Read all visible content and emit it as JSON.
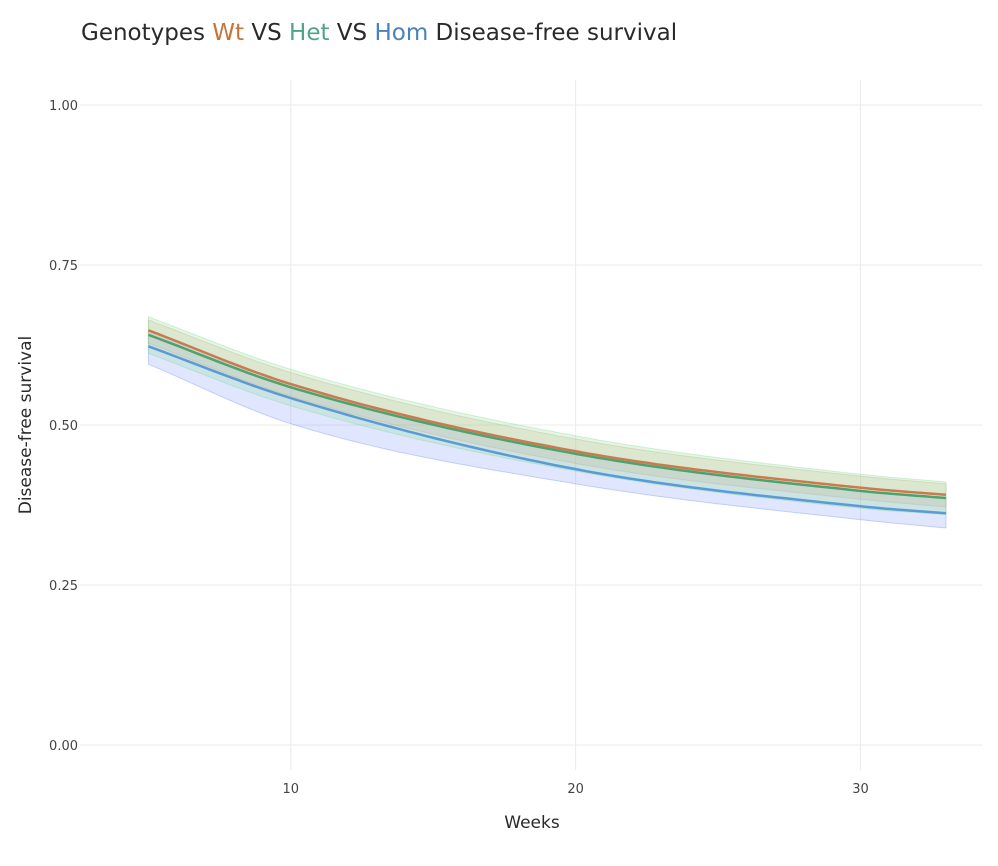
{
  "chart_data": {
    "type": "line",
    "title_parts": [
      {
        "text": "Genotypes ",
        "color": "#2a2a2a"
      },
      {
        "text": "Wt",
        "color": "#c8733a"
      },
      {
        "text": " VS ",
        "color": "#2a2a2a"
      },
      {
        "text": "Het",
        "color": "#4da585"
      },
      {
        "text": " VS ",
        "color": "#2a2a2a"
      },
      {
        "text": "Hom",
        "color": "#4a82be"
      },
      {
        "text": " Disease-free survival",
        "color": "#2a2a2a"
      }
    ],
    "xlabel": "Weeks",
    "ylabel": "Disease-free survival",
    "xlim": [
      2.6,
      34.3
    ],
    "ylim": [
      0,
      1
    ],
    "xticks": [
      10,
      20,
      30
    ],
    "xtick_labels": [
      "10",
      "20",
      "30"
    ],
    "yticks": [
      0,
      0.25,
      0.5,
      0.75,
      1.0
    ],
    "ytick_labels": [
      "0.00",
      "0.25",
      "0.50",
      "0.75",
      "1.00"
    ],
    "grid": true,
    "legend": "none",
    "x": [
      5,
      10,
      20,
      30,
      33
    ],
    "series": [
      {
        "name": "Hom",
        "color": "#5b9bd5",
        "band_color": "#6f8cf5",
        "values": [
          0.623,
          0.542,
          0.431,
          0.373,
          0.362
        ],
        "lower": [
          0.595,
          0.502,
          0.408,
          0.352,
          0.339
        ],
        "upper": [
          0.648,
          0.565,
          0.457,
          0.398,
          0.386
        ]
      },
      {
        "name": "Wt",
        "color": "#cb7a4f",
        "band_color": "#d9a37f",
        "values": [
          0.648,
          0.564,
          0.459,
          0.402,
          0.391
        ],
        "lower": [
          0.628,
          0.545,
          0.44,
          0.384,
          0.372
        ],
        "upper": [
          0.664,
          0.582,
          0.478,
          0.42,
          0.408
        ]
      },
      {
        "name": "Het",
        "color": "#4ea36c",
        "band_color": "#7fd98e",
        "values": [
          0.641,
          0.559,
          0.455,
          0.397,
          0.386
        ],
        "lower": [
          0.612,
          0.53,
          0.428,
          0.37,
          0.36
        ],
        "upper": [
          0.669,
          0.587,
          0.483,
          0.423,
          0.411
        ]
      }
    ]
  }
}
